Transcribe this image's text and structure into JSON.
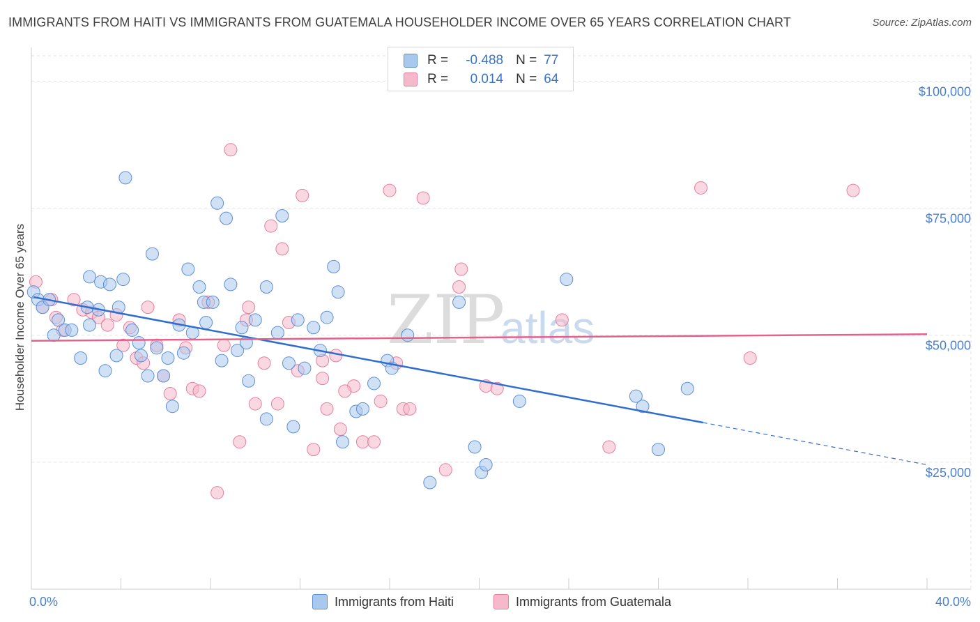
{
  "title": "IMMIGRANTS FROM HAITI VS IMMIGRANTS FROM GUATEMALA HOUSEHOLDER INCOME OVER 65 YEARS CORRELATION CHART",
  "source": "Source: ZipAtlas.com",
  "watermark": {
    "zip": "ZIP",
    "atlas": "atlas"
  },
  "legend": {
    "r_label": "R =",
    "n_label": "N =",
    "haiti": {
      "r": "-0.488",
      "n": "77"
    },
    "guatemala": {
      "r": "0.014",
      "n": "64"
    }
  },
  "colors": {
    "haiti_fill": "#a9c8ee",
    "haiti_stroke": "#5b8fd6",
    "haiti_line": "#2f6ecf",
    "guatemala_fill": "#f6b8cb",
    "guatemala_stroke": "#e67e9f",
    "guatemala_line": "#e4628a",
    "tick_text": "#4a7fcb"
  },
  "chart_data": {
    "type": "scatter",
    "xlabel": "",
    "ylabel": "Householder Income Over 65 years",
    "xlim": [
      0,
      40
    ],
    "ylim": [
      0,
      105000
    ],
    "x_tick_labels": {
      "min": "0.0%",
      "max": "40.0%"
    },
    "y_ticks": [
      {
        "value": 25000,
        "label": "$25,000"
      },
      {
        "value": 50000,
        "label": "$50,000"
      },
      {
        "value": 75000,
        "label": "$75,000"
      },
      {
        "value": 100000,
        "label": "$100,000"
      }
    ],
    "grid": true,
    "series": [
      {
        "name": "Immigrants from Haiti",
        "trend": {
          "x0": 0.1,
          "y0": 57500,
          "x1": 30.0,
          "y1": 32800,
          "dash_to_x": 40.0,
          "dash_to_y": 24500
        },
        "points": [
          [
            0.1,
            58500
          ],
          [
            0.3,
            57000
          ],
          [
            0.5,
            55500
          ],
          [
            0.8,
            57000
          ],
          [
            1.0,
            50000
          ],
          [
            1.2,
            53000
          ],
          [
            1.5,
            51000
          ],
          [
            1.8,
            51000
          ],
          [
            2.2,
            45500
          ],
          [
            2.5,
            55500
          ],
          [
            2.6,
            52000
          ],
          [
            2.6,
            61500
          ],
          [
            3.0,
            55000
          ],
          [
            3.1,
            60500
          ],
          [
            3.3,
            43000
          ],
          [
            3.5,
            60000
          ],
          [
            3.8,
            46000
          ],
          [
            3.9,
            55500
          ],
          [
            4.1,
            61000
          ],
          [
            4.2,
            81000
          ],
          [
            4.5,
            51000
          ],
          [
            4.8,
            48500
          ],
          [
            4.9,
            46000
          ],
          [
            5.2,
            42000
          ],
          [
            5.4,
            66000
          ],
          [
            5.6,
            47500
          ],
          [
            5.9,
            42000
          ],
          [
            6.1,
            45500
          ],
          [
            6.3,
            36000
          ],
          [
            6.6,
            52000
          ],
          [
            6.8,
            46500
          ],
          [
            7.0,
            63000
          ],
          [
            7.2,
            50500
          ],
          [
            7.5,
            59500
          ],
          [
            7.7,
            56500
          ],
          [
            7.8,
            52500
          ],
          [
            8.1,
            56500
          ],
          [
            8.3,
            76000
          ],
          [
            8.5,
            45000
          ],
          [
            8.7,
            73000
          ],
          [
            8.9,
            60000
          ],
          [
            9.2,
            47000
          ],
          [
            9.4,
            51500
          ],
          [
            9.6,
            48500
          ],
          [
            9.7,
            41000
          ],
          [
            10.0,
            53000
          ],
          [
            10.5,
            59500
          ],
          [
            10.5,
            33500
          ],
          [
            11.0,
            50500
          ],
          [
            11.2,
            73500
          ],
          [
            11.5,
            44500
          ],
          [
            11.7,
            32000
          ],
          [
            11.9,
            53000
          ],
          [
            12.2,
            43500
          ],
          [
            12.6,
            51500
          ],
          [
            12.9,
            47000
          ],
          [
            13.2,
            53500
          ],
          [
            13.5,
            63500
          ],
          [
            13.7,
            58500
          ],
          [
            13.9,
            29000
          ],
          [
            14.5,
            35000
          ],
          [
            14.8,
            35500
          ],
          [
            15.3,
            40500
          ],
          [
            15.9,
            45000
          ],
          [
            16.1,
            43500
          ],
          [
            16.8,
            50000
          ],
          [
            17.8,
            21000
          ],
          [
            19.1,
            56500
          ],
          [
            19.8,
            28000
          ],
          [
            20.1,
            23000
          ],
          [
            20.3,
            24500
          ],
          [
            21.8,
            37000
          ],
          [
            23.9,
            61000
          ],
          [
            27.0,
            38000
          ],
          [
            27.3,
            36000
          ],
          [
            28.0,
            27500
          ],
          [
            29.3,
            39500
          ]
        ]
      },
      {
        "name": "Immigrants from Guatemala",
        "trend": {
          "x0": 0.0,
          "y0": 48900,
          "x1": 40.0,
          "y1": 50200
        },
        "points": [
          [
            0.2,
            60500
          ],
          [
            0.5,
            55500
          ],
          [
            0.9,
            57000
          ],
          [
            1.1,
            53500
          ],
          [
            1.4,
            51000
          ],
          [
            1.9,
            57000
          ],
          [
            2.3,
            55000
          ],
          [
            2.7,
            54500
          ],
          [
            3.0,
            53500
          ],
          [
            3.4,
            52000
          ],
          [
            3.8,
            54000
          ],
          [
            4.1,
            48000
          ],
          [
            4.4,
            51500
          ],
          [
            4.7,
            45500
          ],
          [
            5.0,
            44500
          ],
          [
            5.2,
            55500
          ],
          [
            5.6,
            48000
          ],
          [
            5.9,
            42000
          ],
          [
            6.2,
            38500
          ],
          [
            6.6,
            53000
          ],
          [
            6.9,
            47500
          ],
          [
            7.2,
            39500
          ],
          [
            7.5,
            39000
          ],
          [
            7.9,
            56500
          ],
          [
            8.3,
            19000
          ],
          [
            8.6,
            48000
          ],
          [
            8.9,
            86500
          ],
          [
            9.3,
            29000
          ],
          [
            9.6,
            53000
          ],
          [
            9.7,
            55500
          ],
          [
            10.0,
            36500
          ],
          [
            10.4,
            44500
          ],
          [
            10.7,
            71500
          ],
          [
            11.0,
            36500
          ],
          [
            11.2,
            67000
          ],
          [
            11.5,
            52500
          ],
          [
            11.9,
            43000
          ],
          [
            12.1,
            77500
          ],
          [
            12.6,
            27500
          ],
          [
            13.0,
            41500
          ],
          [
            13.2,
            35500
          ],
          [
            13.6,
            46000
          ],
          [
            13.8,
            31500
          ],
          [
            14.4,
            40000
          ],
          [
            14.8,
            29000
          ],
          [
            15.3,
            29000
          ],
          [
            15.6,
            37000
          ],
          [
            16.0,
            78500
          ],
          [
            16.3,
            44500
          ],
          [
            16.6,
            35500
          ],
          [
            16.9,
            35500
          ],
          [
            17.5,
            77000
          ],
          [
            18.5,
            23500
          ],
          [
            19.1,
            59500
          ],
          [
            19.2,
            63000
          ],
          [
            20.3,
            40000
          ],
          [
            20.8,
            39500
          ],
          [
            23.7,
            53000
          ],
          [
            25.8,
            28000
          ],
          [
            29.9,
            79000
          ],
          [
            32.1,
            45500
          ],
          [
            36.7,
            78500
          ],
          [
            14.0,
            39000
          ],
          [
            13.0,
            45000
          ]
        ]
      }
    ]
  },
  "bottom_legend": {
    "haiti": "Immigrants from Haiti",
    "guatemala": "Immigrants from Guatemala"
  }
}
